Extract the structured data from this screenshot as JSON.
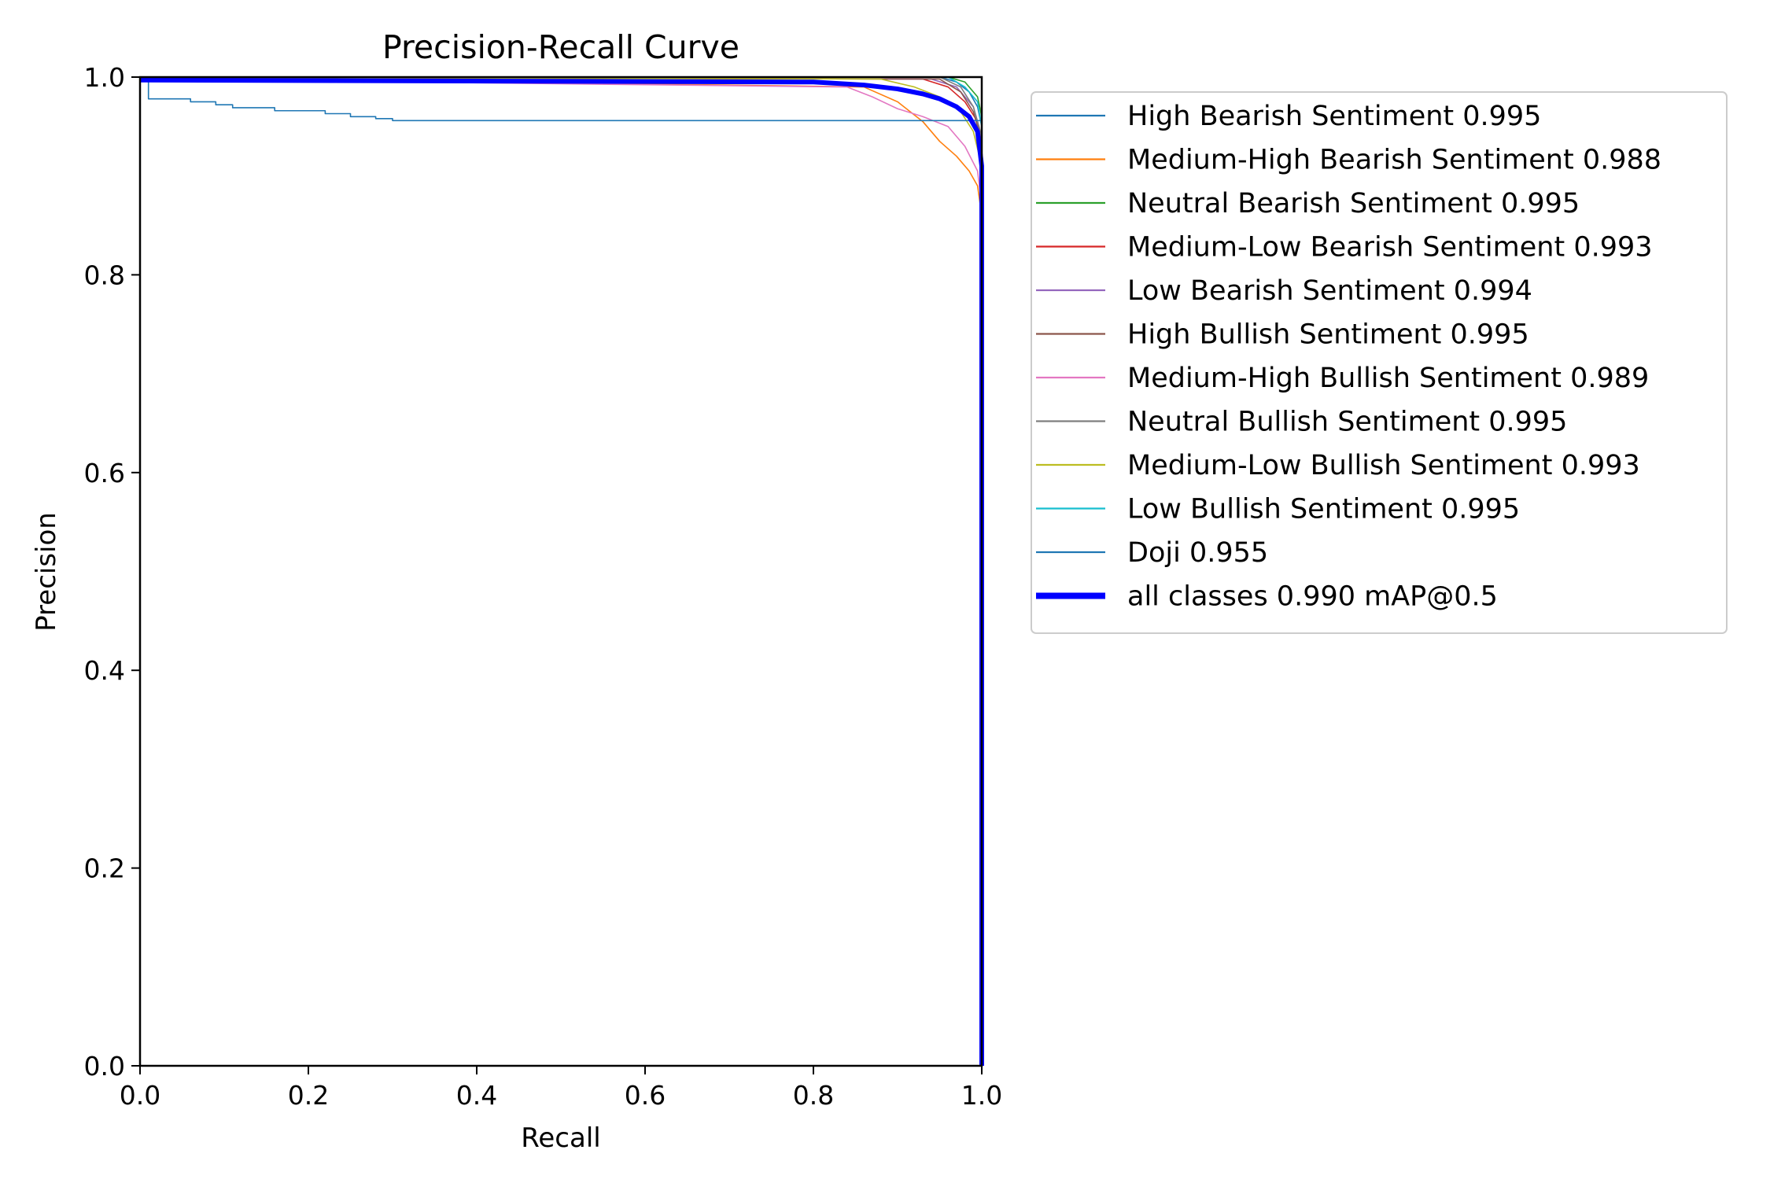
{
  "chart_data": {
    "type": "line",
    "title": "Precision-Recall Curve",
    "xlabel": "Recall",
    "ylabel": "Precision",
    "xlim": [
      0,
      1
    ],
    "ylim": [
      0,
      1
    ],
    "xticks": [
      "0.0",
      "0.2",
      "0.4",
      "0.6",
      "0.8",
      "1.0"
    ],
    "yticks": [
      "0.0",
      "0.2",
      "0.4",
      "0.6",
      "0.8",
      "1.0"
    ],
    "grid": false,
    "legend_position": "outside-right-top",
    "series": [
      {
        "name": "High Bearish Sentiment 0.995",
        "color": "#1f77b4",
        "width": 1.6,
        "x": [
          0,
          0.95,
          0.97,
          0.985,
          0.995,
          1.0,
          1.0
        ],
        "y": [
          1.0,
          1.0,
          0.995,
          0.985,
          0.97,
          0.95,
          0.0
        ]
      },
      {
        "name": "Medium-High Bearish Sentiment 0.988",
        "color": "#ff7f0e",
        "width": 1.6,
        "x": [
          0,
          0.86,
          0.9,
          0.93,
          0.95,
          0.97,
          0.985,
          0.995,
          1.0,
          1.0
        ],
        "y": [
          1.0,
          0.99,
          0.975,
          0.955,
          0.935,
          0.92,
          0.905,
          0.89,
          0.86,
          0.0
        ]
      },
      {
        "name": "Neutral Bearish Sentiment 0.995",
        "color": "#2ca02c",
        "width": 1.6,
        "x": [
          0,
          0.96,
          0.98,
          0.995,
          1.0,
          1.0
        ],
        "y": [
          1.0,
          1.0,
          0.995,
          0.98,
          0.96,
          0.0
        ]
      },
      {
        "name": "Medium-Low Bearish Sentiment 0.993",
        "color": "#d62728",
        "width": 1.6,
        "x": [
          0,
          0.93,
          0.96,
          0.98,
          0.995,
          1.0,
          1.0
        ],
        "y": [
          1.0,
          0.998,
          0.99,
          0.975,
          0.955,
          0.93,
          0.0
        ]
      },
      {
        "name": "Low Bearish Sentiment 0.994",
        "color": "#9467bd",
        "width": 1.6,
        "x": [
          0,
          0.94,
          0.97,
          0.99,
          1.0,
          1.0
        ],
        "y": [
          1.0,
          0.998,
          0.99,
          0.97,
          0.94,
          0.0
        ]
      },
      {
        "name": "High Bullish Sentiment 0.995",
        "color": "#8c564b",
        "width": 1.6,
        "x": [
          0,
          0.95,
          0.975,
          0.99,
          1.0,
          1.0
        ],
        "y": [
          1.0,
          0.998,
          0.985,
          0.965,
          0.935,
          0.0
        ]
      },
      {
        "name": "Medium-High Bullish Sentiment 0.989",
        "color": "#e377c2",
        "width": 1.6,
        "x": [
          0,
          0.84,
          0.87,
          0.9,
          0.93,
          0.96,
          0.98,
          0.995,
          1.0,
          1.0
        ],
        "y": [
          0.998,
          0.99,
          0.98,
          0.968,
          0.96,
          0.95,
          0.93,
          0.905,
          0.87,
          0.0
        ]
      },
      {
        "name": "Neutral Bullish Sentiment 0.995",
        "color": "#7f7f7f",
        "width": 1.6,
        "x": [
          0,
          0.95,
          0.975,
          0.99,
          1.0,
          1.0
        ],
        "y": [
          1.0,
          1.0,
          0.99,
          0.97,
          0.94,
          0.0
        ]
      },
      {
        "name": "Medium-Low Bullish Sentiment 0.993",
        "color": "#bcbd22",
        "width": 1.6,
        "x": [
          0,
          0.88,
          0.92,
          0.95,
          0.975,
          0.99,
          1.0,
          1.0
        ],
        "y": [
          1.0,
          0.998,
          0.99,
          0.98,
          0.965,
          0.945,
          0.91,
          0.0
        ]
      },
      {
        "name": "Low Bullish Sentiment 0.995",
        "color": "#17becf",
        "width": 1.6,
        "x": [
          0,
          0.96,
          0.98,
          0.995,
          1.0,
          1.0
        ],
        "y": [
          1.0,
          1.0,
          0.99,
          0.975,
          0.95,
          0.0
        ]
      },
      {
        "name": "Doji 0.955",
        "color": "#1f77b4",
        "width": 1.6,
        "x": [
          0,
          0.01,
          0.01,
          0.06,
          0.06,
          0.09,
          0.09,
          0.11,
          0.11,
          0.16,
          0.16,
          0.22,
          0.22,
          0.25,
          0.25,
          0.28,
          0.28,
          0.3,
          0.3,
          1.0,
          1.0
        ],
        "y": [
          1.0,
          1.0,
          0.978,
          0.978,
          0.975,
          0.975,
          0.972,
          0.972,
          0.969,
          0.969,
          0.966,
          0.966,
          0.963,
          0.963,
          0.96,
          0.96,
          0.958,
          0.958,
          0.956,
          0.956,
          0.0
        ]
      },
      {
        "name": "all classes 0.990 mAP@0.5",
        "color": "#0000ff",
        "width": 6,
        "x": [
          0,
          0.8,
          0.86,
          0.9,
          0.93,
          0.95,
          0.97,
          0.985,
          0.995,
          1.0,
          1.0
        ],
        "y": [
          0.997,
          0.995,
          0.992,
          0.988,
          0.983,
          0.978,
          0.97,
          0.96,
          0.945,
          0.91,
          0.0
        ]
      }
    ]
  }
}
